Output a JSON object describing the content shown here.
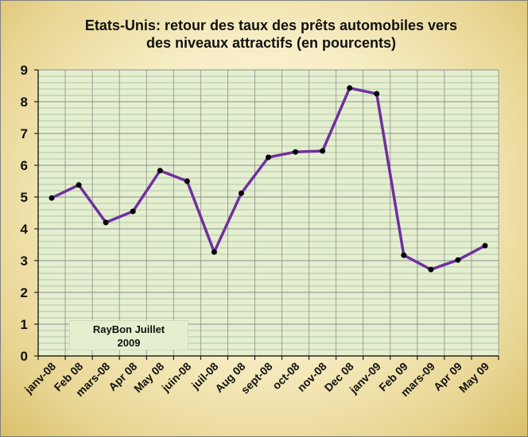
{
  "chart_data": {
    "type": "line",
    "title": [
      "Etats-Unis: retour des taux des prêts automobiles vers",
      "des niveaux attractifs (en pourcents)"
    ],
    "categories": [
      "janv-08",
      "Feb 08",
      "mars-08",
      "Apr 08",
      "May 08",
      "juin-08",
      "juil-08",
      "Aug 08",
      "sept-08",
      "oct-08",
      "nov-08",
      "Dec 08",
      "janv-09",
      "Feb 09",
      "mars-09",
      "Apr 09",
      "May 09"
    ],
    "series": [
      {
        "values": [
          4.97,
          5.38,
          4.2,
          4.55,
          5.83,
          5.5,
          3.27,
          5.12,
          6.25,
          6.42,
          6.45,
          8.43,
          8.25,
          3.17,
          2.72,
          3.02,
          3.47
        ]
      }
    ],
    "ylim": [
      0,
      9
    ],
    "yticks": [
      "0",
      "1",
      "2",
      "3",
      "4",
      "5",
      "6",
      "7",
      "8",
      "9"
    ],
    "grid": true,
    "line_color": "#7030a0",
    "marker_color": "#000000",
    "plot_background": "#e4efd0"
  },
  "annotation": {
    "line1": "RayBon Juillet",
    "line2": "2009"
  }
}
